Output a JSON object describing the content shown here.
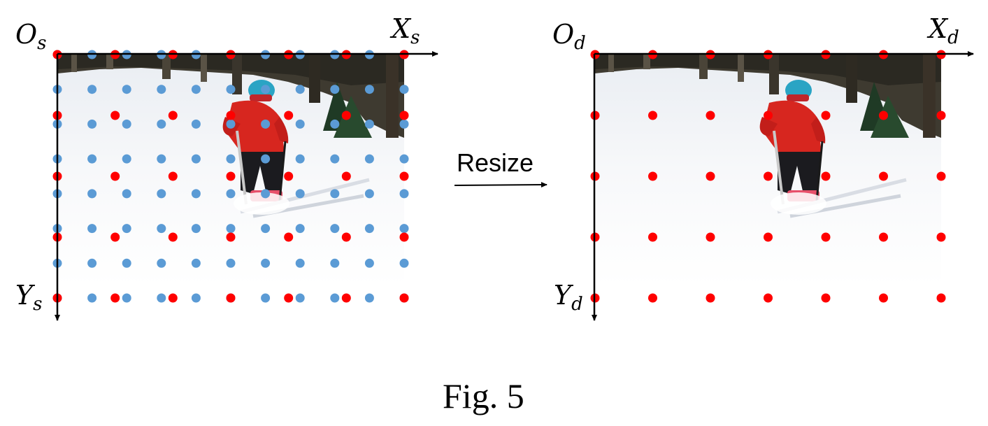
{
  "labels": {
    "source_origin": {
      "main": "O",
      "sub": "s"
    },
    "source_x_axis": {
      "main": "X",
      "sub": "s"
    },
    "source_y_axis": {
      "main": "Y",
      "sub": "s"
    },
    "dest_origin": {
      "main": "O",
      "sub": "d"
    },
    "dest_x_axis": {
      "main": "X",
      "sub": "d"
    },
    "dest_y_axis": {
      "main": "Y",
      "sub": "d"
    },
    "arrow": "Resize",
    "caption": "Fig. 5"
  },
  "grids": {
    "source": {
      "red_cols": 7,
      "red_rows": 5,
      "blue_cols": 11,
      "blue_rows": 8
    },
    "dest": {
      "red_cols": 7,
      "red_rows": 5
    }
  },
  "colors": {
    "red_point": "#ff0000",
    "blue_point": "#5b9bd5",
    "axis": "#000000"
  }
}
